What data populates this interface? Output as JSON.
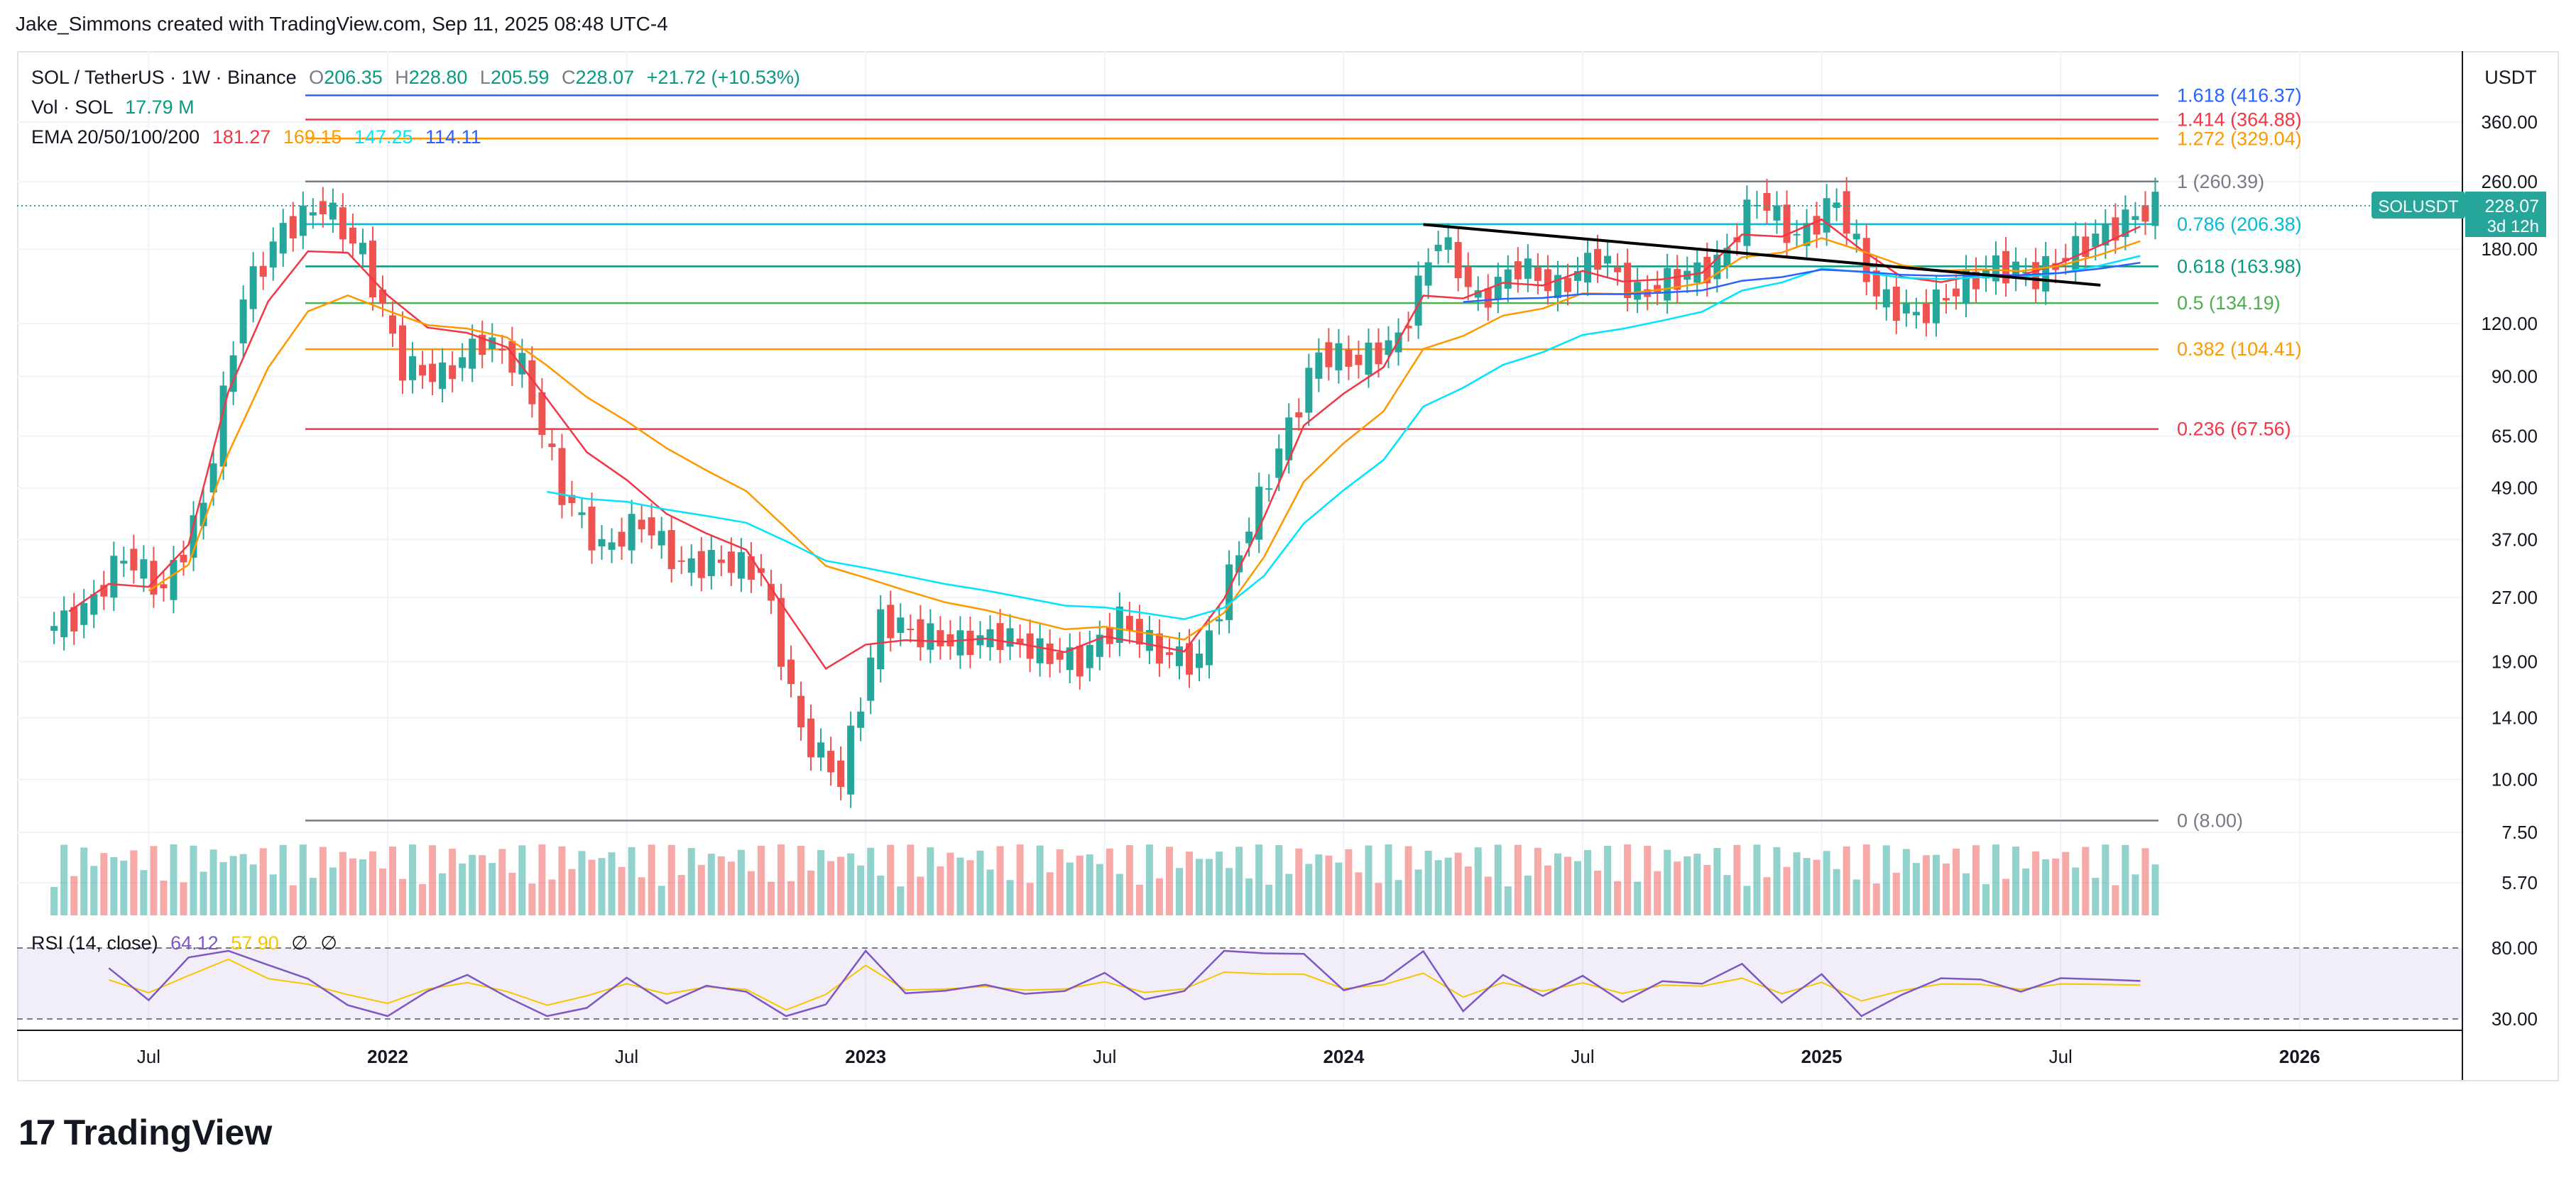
{
  "header": {
    "credit": "Jake_Simmons created with TradingView.com, Sep 11, 2025 08:48 UTC-4"
  },
  "legend": {
    "symbol": "SOL / TetherUS · 1W · Binance",
    "o_label": "O",
    "o": "206.35",
    "h_label": "H",
    "h": "228.80",
    "l_label": "L",
    "l": "205.59",
    "c_label": "C",
    "c": "228.07",
    "change": "+21.72 (+10.53%)",
    "vol_label": "Vol · SOL",
    "vol": "17.79 M",
    "ema_label": "EMA 20/50/100/200",
    "ema20": "181.27",
    "ema50": "169.15",
    "ema100": "147.25",
    "ema200": "114.11"
  },
  "rsi": {
    "label": "RSI (14, close)",
    "value": "64.12",
    "ma_value": "57.90",
    "na1": "∅",
    "na2": "∅"
  },
  "axis": {
    "currency": "USDT"
  },
  "price_tag": {
    "symbol": "SOLUSDT",
    "price": "228.07",
    "countdown": "3d 12h"
  },
  "colors": {
    "up": "#26a69a",
    "down": "#ef5350",
    "ema20": "#f23645",
    "ema50": "#ff9800",
    "ema100": "#00e5ff",
    "ema200": "#2962ff",
    "trendline": "#000000"
  },
  "footer": {
    "logo_mark": "17",
    "logo_text": "TradingView"
  },
  "chart_data": {
    "type": "candlestick",
    "title": "SOL / TetherUS · 1W · Binance",
    "y_scale": "log",
    "y_ticks": [
      "360.00",
      "260.00",
      "180.00",
      "120.00",
      "90.00",
      "65.00",
      "49.00",
      "37.00",
      "27.00",
      "19.00",
      "14.00",
      "10.00",
      "7.50",
      "5.70"
    ],
    "rsi_ticks": [
      "80.00",
      "30.00"
    ],
    "x_ticks": [
      "Jul",
      "2022",
      "Jul",
      "2023",
      "Jul",
      "2024",
      "Jul",
      "2025",
      "Jul",
      "2026"
    ],
    "fibonacci": [
      {
        "level": "1.618",
        "price": 416.37,
        "label": "1.618 (416.37)",
        "color": "#2962ff"
      },
      {
        "level": "1.414",
        "price": 364.88,
        "label": "1.414 (364.88)",
        "color": "#f23645"
      },
      {
        "level": "1.272",
        "price": 329.04,
        "label": "1.272 (329.04)",
        "color": "#ff9800"
      },
      {
        "level": "1",
        "price": 260.39,
        "label": "1 (260.39)",
        "color": "#787b86"
      },
      {
        "level": "0.786",
        "price": 206.38,
        "label": "0.786 (206.38)",
        "color": "#00bcd4"
      },
      {
        "level": "0.618",
        "price": 163.98,
        "label": "0.618 (163.98)",
        "color": "#089981"
      },
      {
        "level": "0.5",
        "price": 134.19,
        "label": "0.5 (134.19)",
        "color": "#4caf50"
      },
      {
        "level": "0.382",
        "price": 104.41,
        "label": "0.382 (104.41)",
        "color": "#ff9800"
      },
      {
        "level": "0.236",
        "price": 67.56,
        "label": "0.236 (67.56)",
        "color": "#f23645"
      },
      {
        "level": "0",
        "price": 8.0,
        "label": "0 (8.00)",
        "color": "#787b86"
      }
    ],
    "trendline": {
      "from": [
        "2024-03",
        206
      ],
      "to": [
        "2025-08",
        148
      ]
    },
    "closes": [
      [
        "2021-05",
        25
      ],
      [
        "2021-06",
        34
      ],
      [
        "2021-07",
        28
      ],
      [
        "2021-08",
        45
      ],
      [
        "2021-09",
        140
      ],
      [
        "2021-10",
        200
      ],
      [
        "2021-11",
        230
      ],
      [
        "2021-12",
        175
      ],
      [
        "2022-01",
        95
      ],
      [
        "2022-02",
        90
      ],
      [
        "2022-03",
        110
      ],
      [
        "2022-04",
        95
      ],
      [
        "2022-05",
        48
      ],
      [
        "2022-06",
        35
      ],
      [
        "2022-07",
        41
      ],
      [
        "2022-08",
        32
      ],
      [
        "2022-09",
        33
      ],
      [
        "2022-10",
        31
      ],
      [
        "2022-11",
        13
      ],
      [
        "2022-12",
        10
      ],
      [
        "2023-01",
        24
      ],
      [
        "2023-02",
        22
      ],
      [
        "2023-03",
        21
      ],
      [
        "2023-04",
        22
      ],
      [
        "2023-05",
        20
      ],
      [
        "2023-06",
        19
      ],
      [
        "2023-07",
        24
      ],
      [
        "2023-08",
        20
      ],
      [
        "2023-09",
        19
      ],
      [
        "2023-10",
        35
      ],
      [
        "2023-11",
        60
      ],
      [
        "2023-12",
        102
      ],
      [
        "2024-01",
        98
      ],
      [
        "2024-02",
        110
      ],
      [
        "2024-03",
        195
      ],
      [
        "2024-04",
        135
      ],
      [
        "2024-05",
        165
      ],
      [
        "2024-06",
        145
      ],
      [
        "2024-07",
        175
      ],
      [
        "2024-08",
        140
      ],
      [
        "2024-09",
        155
      ],
      [
        "2024-10",
        165
      ],
      [
        "2024-11",
        240
      ],
      [
        "2024-12",
        190
      ],
      [
        "2025-01",
        235
      ],
      [
        "2025-02",
        140
      ],
      [
        "2025-03",
        125
      ],
      [
        "2025-04",
        145
      ],
      [
        "2025-05",
        165
      ],
      [
        "2025-06",
        155
      ],
      [
        "2025-07",
        180
      ],
      [
        "2025-08",
        205
      ],
      [
        "2025-09",
        228.07
      ]
    ],
    "ema200_last": 114.11,
    "ema100_last": 147.25,
    "ema50_last": 169.15,
    "ema20_last": 181.27,
    "rsi_last": 64.12
  }
}
